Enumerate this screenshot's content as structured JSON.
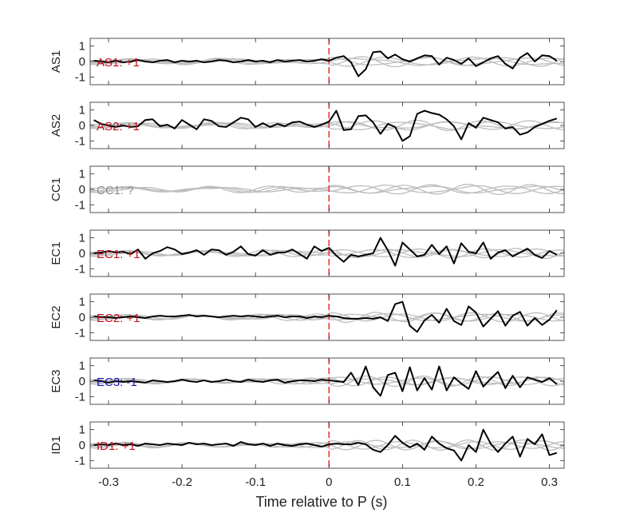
{
  "chart_data": {
    "type": "line",
    "xlabel": "Time relative to P (s)",
    "xlim": [
      -0.325,
      0.32
    ],
    "xticks": [
      -0.3,
      -0.2,
      -0.1,
      0,
      0.1,
      0.2,
      0.3
    ],
    "xtick_labels": [
      "-0.3",
      "-0.2",
      "-0.1",
      "0",
      "0.1",
      "0.2",
      "0.3"
    ],
    "ylim": [
      -1.5,
      1.5
    ],
    "yticks": [
      -1,
      0,
      1
    ],
    "ytick_labels": [
      "-1",
      "0",
      "1"
    ],
    "reference_line": {
      "x": 0,
      "color": "#e8221a",
      "style": "dashed"
    },
    "colors": {
      "trace": "#000000",
      "background_traces": "#bdbdbd",
      "positive": "#c1121f",
      "negative": "#1a1aa8",
      "unknown": "#8c8c8c"
    },
    "panels": [
      {
        "ylabel": "AS1",
        "annotation": "AS1: +1",
        "annotation_color": "#c1121f",
        "x": [
          -0.32,
          -0.31,
          -0.3,
          -0.29,
          -0.28,
          -0.27,
          -0.26,
          -0.25,
          -0.24,
          -0.23,
          -0.22,
          -0.21,
          -0.2,
          -0.19,
          -0.18,
          -0.17,
          -0.16,
          -0.15,
          -0.14,
          -0.13,
          -0.12,
          -0.11,
          -0.1,
          -0.09,
          -0.08,
          -0.07,
          -0.06,
          -0.05,
          -0.04,
          -0.03,
          -0.02,
          -0.01,
          0.0,
          0.01,
          0.02,
          0.03,
          0.04,
          0.05,
          0.06,
          0.07,
          0.08,
          0.09,
          0.1,
          0.11,
          0.12,
          0.13,
          0.14,
          0.15,
          0.16,
          0.17,
          0.18,
          0.19,
          0.2,
          0.21,
          0.22,
          0.23,
          0.24,
          0.25,
          0.26,
          0.27,
          0.28,
          0.29,
          0.3,
          0.31
        ],
        "y": [
          0.05,
          0,
          -0.05,
          0.05,
          -0.05,
          0,
          0.1,
          0,
          -0.05,
          0.05,
          0.1,
          -0.05,
          0.05,
          0,
          0.05,
          -0.05,
          0,
          0.1,
          0.05,
          -0.05,
          0,
          0.1,
          0,
          0.05,
          -0.05,
          0.1,
          0,
          0.05,
          0.1,
          0,
          0.05,
          0.15,
          0.05,
          0.25,
          0.35,
          -0.05,
          -0.95,
          -0.5,
          0.6,
          0.65,
          0.2,
          0.45,
          0.15,
          0,
          0.2,
          0.4,
          0.35,
          -0.2,
          0.25,
          0.1,
          -0.15,
          0.2,
          -0.3,
          -0.05,
          0.2,
          0.35,
          -0.15,
          -0.45,
          0.25,
          0.55,
          0,
          0.4,
          0.35,
          0.05
        ]
      },
      {
        "ylabel": "AS2",
        "annotation": "AS2: +1",
        "annotation_color": "#c1121f",
        "x": [
          -0.32,
          -0.31,
          -0.3,
          -0.29,
          -0.28,
          -0.27,
          -0.26,
          -0.25,
          -0.24,
          -0.23,
          -0.22,
          -0.21,
          -0.2,
          -0.19,
          -0.18,
          -0.17,
          -0.16,
          -0.15,
          -0.14,
          -0.13,
          -0.12,
          -0.11,
          -0.1,
          -0.09,
          -0.08,
          -0.07,
          -0.06,
          -0.05,
          -0.04,
          -0.03,
          -0.02,
          -0.01,
          0.0,
          0.01,
          0.02,
          0.03,
          0.04,
          0.05,
          0.06,
          0.07,
          0.08,
          0.09,
          0.1,
          0.11,
          0.12,
          0.13,
          0.14,
          0.15,
          0.16,
          0.17,
          0.18,
          0.19,
          0.2,
          0.21,
          0.22,
          0.23,
          0.24,
          0.25,
          0.26,
          0.27,
          0.28,
          0.29,
          0.3,
          0.31
        ],
        "y": [
          0.35,
          0.1,
          0,
          -0.1,
          0,
          -0.1,
          -0.05,
          0.35,
          0.4,
          -0.05,
          0.05,
          -0.2,
          0.35,
          0.05,
          -0.25,
          0.4,
          0.3,
          -0.05,
          -0.1,
          0.2,
          0.5,
          0.4,
          -0.1,
          0.15,
          -0.1,
          0.1,
          -0.05,
          0.2,
          0.25,
          0.05,
          -0.1,
          0.05,
          0.25,
          0.95,
          -0.3,
          -0.25,
          0.6,
          0.65,
          0.2,
          -0.55,
          0.1,
          -0.1,
          -1.0,
          -0.7,
          0.75,
          0.95,
          0.8,
          0.7,
          0.4,
          -0.05,
          -0.9,
          0.15,
          -0.15,
          0.5,
          0.35,
          0.2,
          -0.2,
          -0.1,
          -0.6,
          -0.45,
          -0.1,
          0.1,
          0.3,
          0.45
        ]
      },
      {
        "ylabel": "CC1",
        "annotation": "CC1: ?",
        "annotation_color": "#8c8c8c",
        "x": [],
        "y": []
      },
      {
        "ylabel": "EC1",
        "annotation": "EC1: +1",
        "annotation_color": "#c1121f",
        "x": [
          -0.32,
          -0.31,
          -0.3,
          -0.29,
          -0.28,
          -0.27,
          -0.26,
          -0.25,
          -0.24,
          -0.23,
          -0.22,
          -0.21,
          -0.2,
          -0.19,
          -0.18,
          -0.17,
          -0.16,
          -0.15,
          -0.14,
          -0.13,
          -0.12,
          -0.11,
          -0.1,
          -0.09,
          -0.08,
          -0.07,
          -0.06,
          -0.05,
          -0.04,
          -0.03,
          -0.02,
          -0.01,
          0.0,
          0.01,
          0.02,
          0.03,
          0.04,
          0.05,
          0.06,
          0.07,
          0.08,
          0.09,
          0.1,
          0.11,
          0.12,
          0.13,
          0.14,
          0.15,
          0.16,
          0.17,
          0.18,
          0.19,
          0.2,
          0.21,
          0.22,
          0.23,
          0.24,
          0.25,
          0.26,
          0.27,
          0.28,
          0.29,
          0.3,
          0.31
        ],
        "y": [
          0,
          0.05,
          0.15,
          0.05,
          0.1,
          -0.05,
          0.25,
          -0.35,
          0,
          0.15,
          0.4,
          0.25,
          -0.05,
          0.05,
          0.2,
          -0.1,
          0.25,
          0.2,
          -0.1,
          0.1,
          0.45,
          -0.05,
          -0.15,
          0.2,
          -0.1,
          0.05,
          0.05,
          0.25,
          -0.05,
          -0.35,
          0.45,
          0.15,
          0.35,
          -0.15,
          -0.55,
          -0.1,
          -0.2,
          -0.1,
          0,
          1.0,
          0.2,
          -0.8,
          0.7,
          0.25,
          -0.2,
          -0.1,
          0.55,
          -0.05,
          0.45,
          -0.65,
          0.65,
          0.1,
          0,
          0.7,
          -0.35,
          0.05,
          0.2,
          -0.2,
          0.05,
          0.3,
          -0.1,
          -0.3,
          0.15,
          -0.1
        ]
      },
      {
        "ylabel": "EC2",
        "annotation": "EC2: +1",
        "annotation_color": "#c1121f",
        "x": [
          -0.32,
          -0.31,
          -0.3,
          -0.29,
          -0.28,
          -0.27,
          -0.26,
          -0.25,
          -0.24,
          -0.23,
          -0.22,
          -0.21,
          -0.2,
          -0.19,
          -0.18,
          -0.17,
          -0.16,
          -0.15,
          -0.14,
          -0.13,
          -0.12,
          -0.11,
          -0.1,
          -0.09,
          -0.08,
          -0.07,
          -0.06,
          -0.05,
          -0.04,
          -0.03,
          -0.02,
          -0.01,
          0.0,
          0.01,
          0.02,
          0.03,
          0.04,
          0.05,
          0.06,
          0.07,
          0.08,
          0.09,
          0.1,
          0.11,
          0.12,
          0.13,
          0.14,
          0.15,
          0.16,
          0.17,
          0.18,
          0.19,
          0.2,
          0.21,
          0.22,
          0.23,
          0.24,
          0.25,
          0.26,
          0.27,
          0.28,
          0.29,
          0.3,
          0.31
        ],
        "y": [
          0.05,
          0,
          0,
          -0.05,
          0,
          0.05,
          0,
          -0.05,
          0.05,
          0.1,
          0.05,
          0.05,
          0.1,
          0.15,
          0.05,
          0.1,
          0.05,
          0,
          0.05,
          0.1,
          0.05,
          0.1,
          0.05,
          0,
          0.05,
          0.1,
          0,
          0.05,
          0.05,
          -0.05,
          0.05,
          0,
          0.1,
          0.05,
          -0.05,
          -0.1,
          -0.1,
          -0.05,
          -0.1,
          0,
          -0.25,
          0.85,
          1.0,
          -0.55,
          -0.95,
          -0.2,
          0.15,
          -0.35,
          0.55,
          -0.25,
          -0.5,
          0.7,
          0.3,
          -0.6,
          -0.1,
          0.4,
          -0.55,
          0.1,
          0.35,
          -0.55,
          -0.05,
          -0.5,
          -0.15,
          0.45
        ]
      },
      {
        "ylabel": "EC3",
        "annotation": "EC3: -1",
        "annotation_color": "#1a1aa8",
        "x": [
          -0.32,
          -0.31,
          -0.3,
          -0.29,
          -0.28,
          -0.27,
          -0.26,
          -0.25,
          -0.24,
          -0.23,
          -0.22,
          -0.21,
          -0.2,
          -0.19,
          -0.18,
          -0.17,
          -0.16,
          -0.15,
          -0.14,
          -0.13,
          -0.12,
          -0.11,
          -0.1,
          -0.09,
          -0.08,
          -0.07,
          -0.06,
          -0.05,
          -0.04,
          -0.03,
          -0.02,
          -0.01,
          0.0,
          0.01,
          0.02,
          0.03,
          0.04,
          0.05,
          0.06,
          0.07,
          0.08,
          0.09,
          0.1,
          0.11,
          0.12,
          0.13,
          0.14,
          0.15,
          0.16,
          0.17,
          0.18,
          0.19,
          0.2,
          0.21,
          0.22,
          0.23,
          0.24,
          0.25,
          0.26,
          0.27,
          0.28,
          0.29,
          0.3,
          0.31
        ],
        "y": [
          0.05,
          0,
          -0.1,
          0,
          -0.05,
          0,
          -0.05,
          -0.1,
          0.05,
          0,
          -0.05,
          0,
          0.1,
          0,
          -0.05,
          0.05,
          -0.05,
          0,
          0.1,
          0,
          -0.05,
          0.1,
          0,
          -0.05,
          0.05,
          0.1,
          -0.1,
          0,
          0.05,
          0.05,
          0,
          0.1,
          0.05,
          0,
          -0.05,
          0.55,
          -0.25,
          0.95,
          -0.4,
          -0.95,
          0.4,
          0.55,
          -0.65,
          0.9,
          -0.6,
          0.2,
          -0.55,
          0.95,
          -0.6,
          0.25,
          -0.15,
          -0.5,
          0.65,
          -0.35,
          0.15,
          0.6,
          -0.45,
          0.35,
          -0.4,
          0.25,
          0.1,
          -0.05,
          0.2,
          -0.2
        ]
      },
      {
        "ylabel": "ID1",
        "annotation": "ID1: +1",
        "annotation_color": "#c1121f",
        "x": [
          -0.32,
          -0.31,
          -0.3,
          -0.29,
          -0.28,
          -0.27,
          -0.26,
          -0.25,
          -0.24,
          -0.23,
          -0.22,
          -0.21,
          -0.2,
          -0.19,
          -0.18,
          -0.17,
          -0.16,
          -0.15,
          -0.14,
          -0.13,
          -0.12,
          -0.11,
          -0.1,
          -0.09,
          -0.08,
          -0.07,
          -0.06,
          -0.05,
          -0.04,
          -0.03,
          -0.02,
          -0.01,
          0.0,
          0.01,
          0.02,
          0.03,
          0.04,
          0.05,
          0.06,
          0.07,
          0.08,
          0.09,
          0.1,
          0.11,
          0.12,
          0.13,
          0.14,
          0.15,
          0.16,
          0.17,
          0.18,
          0.19,
          0.2,
          0.21,
          0.22,
          0.23,
          0.24,
          0.25,
          0.26,
          0.27,
          0.28,
          0.29,
          0.3,
          0.31
        ],
        "y": [
          0,
          0.05,
          0,
          0.1,
          0,
          0.05,
          -0.05,
          0.1,
          0.05,
          0,
          0.1,
          0.05,
          0,
          0.15,
          0.05,
          0.1,
          0,
          0.05,
          0.1,
          -0.05,
          0.2,
          0.05,
          0,
          0.1,
          -0.05,
          0.1,
          0,
          -0.05,
          0.05,
          0.1,
          0,
          -0.1,
          0.05,
          0.1,
          0.05,
          0.05,
          0.15,
          0.05,
          -0.3,
          -0.45,
          0,
          0.6,
          0.15,
          -0.15,
          0.1,
          -0.3,
          0.55,
          0.1,
          -0.2,
          -0.35,
          -1.0,
          0,
          -0.45,
          1.0,
          0.1,
          -0.45,
          0.1,
          0.55,
          -0.75,
          0.4,
          0.05,
          0.7,
          -0.65,
          -0.5
        ]
      }
    ]
  }
}
